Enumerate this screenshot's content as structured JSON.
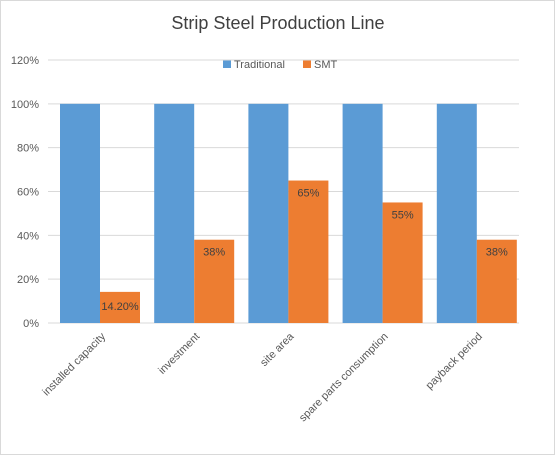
{
  "chart_data": {
    "type": "bar",
    "title": "Strip Steel Production Line",
    "categories": [
      "installed capacity",
      "investment",
      "site area",
      "spare parts consumption",
      "payback period"
    ],
    "series": [
      {
        "name": "Traditional",
        "values": [
          100,
          100,
          100,
          100,
          100
        ],
        "color": "#5b9bd5"
      },
      {
        "name": "SMT",
        "values": [
          14.2,
          38,
          65,
          55,
          38
        ],
        "color": "#ed7d31",
        "data_labels": [
          "14.20%",
          "38%",
          "65%",
          "55%",
          "38%"
        ]
      }
    ],
    "ylim": [
      0,
      120
    ],
    "yticks": [
      "0%",
      "20%",
      "40%",
      "60%",
      "80%",
      "100%",
      "120%"
    ],
    "grid": true,
    "legend_position": "top"
  }
}
